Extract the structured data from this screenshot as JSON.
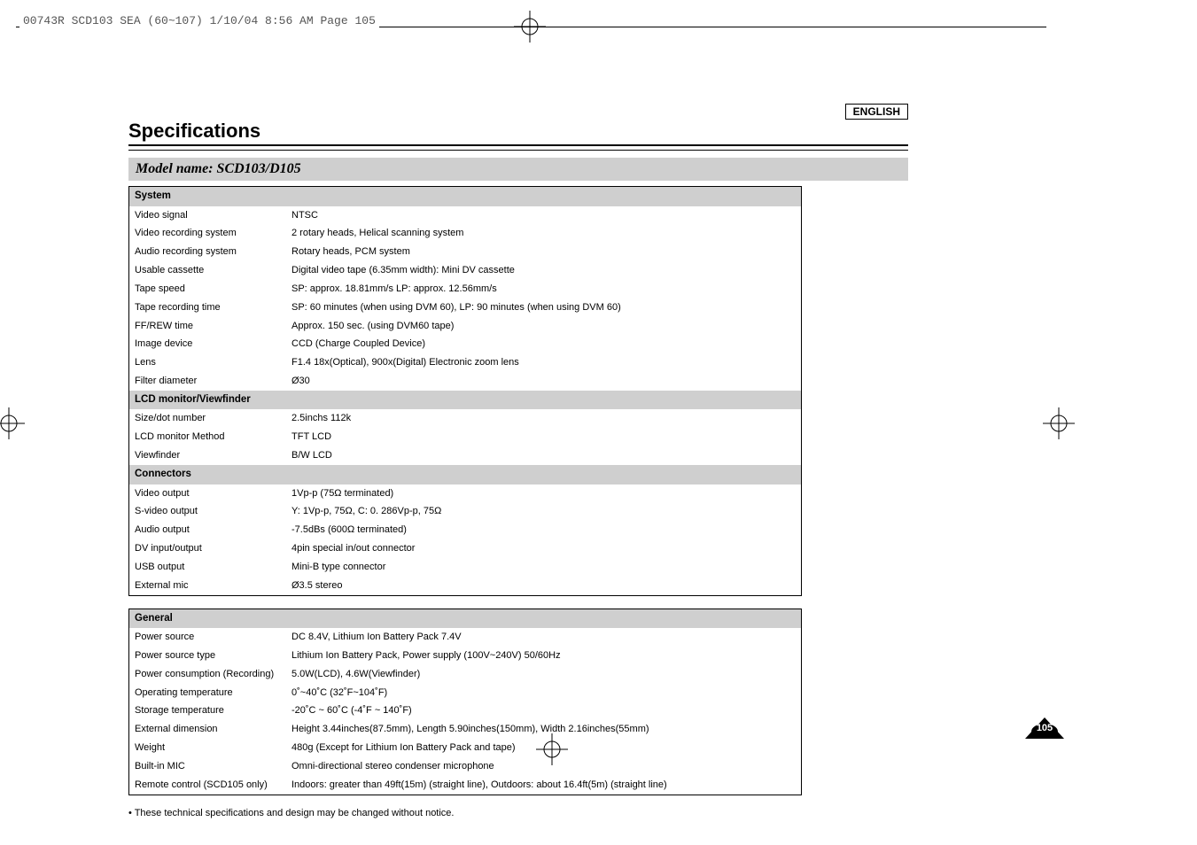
{
  "header": {
    "filecode": "00743R SCD103 SEA (60~107)  1/10/04 8:56 AM  Page 105"
  },
  "lang": "ENGLISH",
  "title": "Specifications",
  "model_bar": "Model name: SCD103/D105",
  "table1": {
    "sections": [
      {
        "head": "System",
        "rows": [
          [
            "Video signal",
            "NTSC"
          ],
          [
            "Video recording system",
            "2 rotary heads, Helical scanning system"
          ],
          [
            "Audio recording system",
            "Rotary heads, PCM system"
          ],
          [
            "Usable cassette",
            "Digital video tape (6.35mm width): Mini DV cassette"
          ],
          [
            "Tape speed",
            "SP: approx. 18.81mm/s    LP: approx. 12.56mm/s"
          ],
          [
            "Tape recording time",
            "SP: 60 minutes (when using DVM 60), LP: 90 minutes (when using DVM 60)"
          ],
          [
            "FF/REW time",
            "Approx. 150 sec. (using DVM60 tape)"
          ],
          [
            "Image device",
            "CCD (Charge Coupled Device)"
          ],
          [
            "Lens",
            "F1.4 18x(Optical), 900x(Digital) Electronic zoom lens"
          ],
          [
            "Filter diameter",
            "Ø30"
          ]
        ]
      },
      {
        "head": "LCD monitor/Viewfinder",
        "rows": [
          [
            "Size/dot number",
            "2.5inchs 112k"
          ],
          [
            "LCD monitor Method",
            "TFT LCD"
          ],
          [
            "Viewfinder",
            "B/W LCD"
          ]
        ]
      },
      {
        "head": "Connectors",
        "rows": [
          [
            "Video output",
            "1Vp-p (75Ω terminated)"
          ],
          [
            "S-video output",
            "Y: 1Vp-p, 75Ω, C: 0. 286Vp-p, 75Ω"
          ],
          [
            "Audio output",
            "-7.5dBs (600Ω terminated)"
          ],
          [
            "DV input/output",
            "4pin special in/out connector"
          ],
          [
            "USB output",
            "Mini-B type connector"
          ],
          [
            "External mic",
            "Ø3.5 stereo"
          ]
        ]
      }
    ]
  },
  "table2": {
    "sections": [
      {
        "head": "General",
        "rows": [
          [
            "Power source",
            "DC 8.4V, Lithium Ion Battery Pack 7.4V"
          ],
          [
            "Power source type",
            "Lithium Ion Battery Pack, Power supply (100V~240V) 50/60Hz"
          ],
          [
            "Power consumption (Recording)",
            "5.0W(LCD), 4.6W(Viewfinder)"
          ],
          [
            "Operating temperature",
            "0˚~40˚C (32˚F~104˚F)"
          ],
          [
            "Storage temperature",
            "-20˚C ~ 60˚C (-4˚F ~ 140˚F)"
          ],
          [
            "External dimension",
            "Height 3.44inches(87.5mm), Length 5.90inches(150mm), Width 2.16inches(55mm)"
          ],
          [
            "Weight",
            "480g (Except for Lithium Ion Battery Pack and tape)"
          ],
          [
            "Built-in MIC",
            "Omni-directional stereo condenser microphone"
          ],
          [
            "Remote control (SCD105 only)",
            "Indoors: greater than 49ft(15m) (straight line), Outdoors: about 16.4ft(5m) (straight line)"
          ]
        ]
      }
    ]
  },
  "note": "•  These technical specifications and design may be changed without notice.",
  "page_number": "105"
}
